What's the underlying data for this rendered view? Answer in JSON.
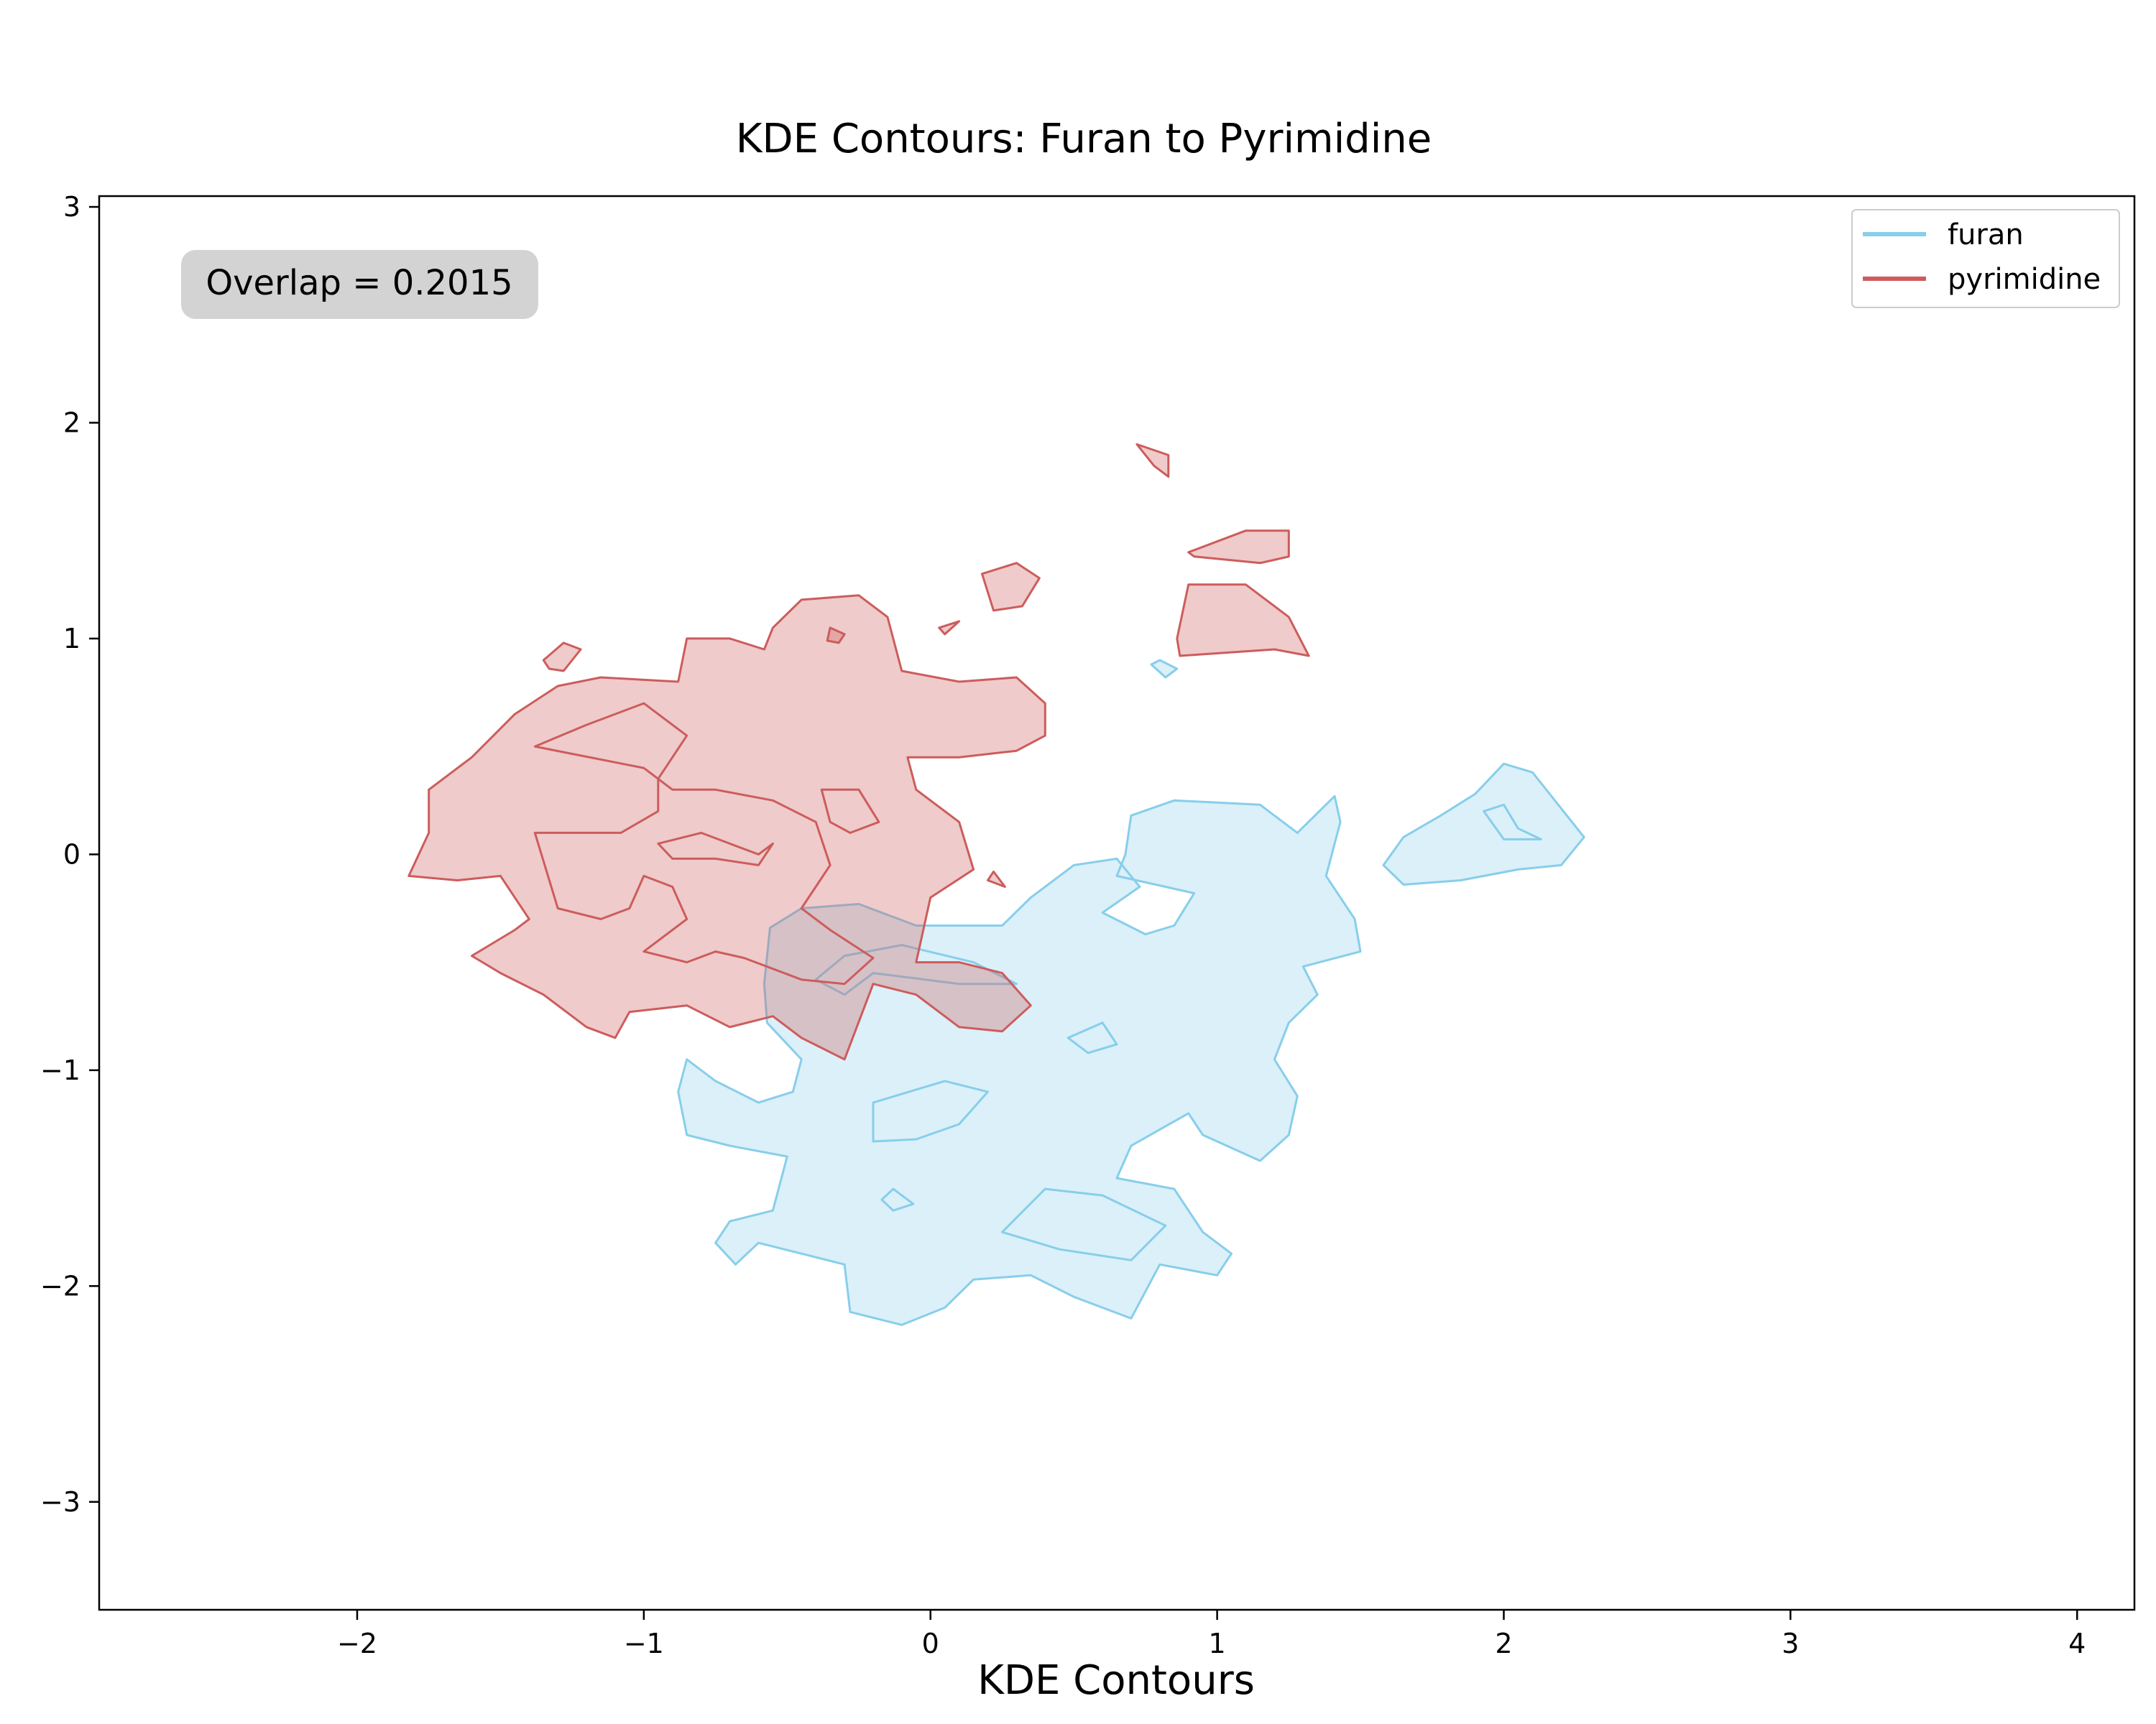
{
  "chart_data": {
    "type": "contour",
    "title": "KDE Contours: Furan to Pyrimidine",
    "xlabel": "KDE Contours",
    "ylabel": "",
    "xlim": [
      -2.9,
      4.2
    ],
    "ylim": [
      -3.5,
      3.05
    ],
    "xticks": [
      -2,
      -1,
      0,
      1,
      2,
      3,
      4
    ],
    "yticks": [
      -3,
      -2,
      -1,
      0,
      1,
      2,
      3
    ],
    "xtick_labels": [
      "−2",
      "−1",
      "0",
      "1",
      "2",
      "3",
      "4"
    ],
    "ytick_labels": [
      "−3",
      "−2",
      "−1",
      "0",
      "1",
      "2",
      "3"
    ],
    "grid": false,
    "legend_position": "top-right",
    "annotation": "Overlap = 0.2015",
    "series": [
      {
        "name": "furan",
        "color": "#87ceeb",
        "regions": [
          [
            [
              -0.56,
              -0.34
            ],
            [
              -0.45,
              -0.25
            ],
            [
              -0.25,
              -0.23
            ],
            [
              -0.05,
              -0.33
            ],
            [
              0.25,
              -0.33
            ],
            [
              0.35,
              -0.2
            ],
            [
              0.5,
              -0.05
            ],
            [
              0.65,
              -0.02
            ],
            [
              0.73,
              -0.15
            ],
            [
              0.6,
              -0.27
            ],
            [
              0.75,
              -0.37
            ],
            [
              0.85,
              -0.33
            ],
            [
              0.92,
              -0.18
            ],
            [
              0.65,
              -0.1
            ],
            [
              0.68,
              0.0
            ],
            [
              0.7,
              0.18
            ],
            [
              0.85,
              0.25
            ],
            [
              1.15,
              0.23
            ],
            [
              1.28,
              0.1
            ],
            [
              1.41,
              0.27
            ],
            [
              1.43,
              0.15
            ],
            [
              1.38,
              -0.1
            ],
            [
              1.48,
              -0.3
            ],
            [
              1.5,
              -0.45
            ],
            [
              1.3,
              -0.52
            ],
            [
              1.35,
              -0.65
            ],
            [
              1.25,
              -0.78
            ],
            [
              1.2,
              -0.95
            ],
            [
              1.28,
              -1.12
            ],
            [
              1.25,
              -1.3
            ],
            [
              1.15,
              -1.42
            ],
            [
              0.95,
              -1.3
            ],
            [
              0.9,
              -1.2
            ],
            [
              0.7,
              -1.35
            ],
            [
              0.65,
              -1.5
            ],
            [
              0.85,
              -1.55
            ],
            [
              0.95,
              -1.75
            ],
            [
              1.05,
              -1.85
            ],
            [
              1.0,
              -1.95
            ],
            [
              0.8,
              -1.9
            ],
            [
              0.7,
              -2.15
            ],
            [
              0.5,
              -2.05
            ],
            [
              0.35,
              -1.95
            ],
            [
              0.15,
              -1.97
            ],
            [
              0.05,
              -2.1
            ],
            [
              -0.1,
              -2.18
            ],
            [
              -0.28,
              -2.12
            ],
            [
              -0.3,
              -1.9
            ],
            [
              -0.45,
              -1.85
            ],
            [
              -0.6,
              -1.8
            ],
            [
              -0.68,
              -1.9
            ],
            [
              -0.75,
              -1.8
            ],
            [
              -0.7,
              -1.7
            ],
            [
              -0.55,
              -1.65
            ],
            [
              -0.5,
              -1.4
            ],
            [
              -0.7,
              -1.35
            ],
            [
              -0.85,
              -1.3
            ],
            [
              -0.88,
              -1.1
            ],
            [
              -0.85,
              -0.95
            ],
            [
              -0.75,
              -1.05
            ],
            [
              -0.6,
              -1.15
            ],
            [
              -0.48,
              -1.1
            ],
            [
              -0.45,
              -0.95
            ],
            [
              -0.57,
              -0.78
            ],
            [
              -0.58,
              -0.6
            ]
          ],
          [
            [
              1.58,
              -0.05
            ],
            [
              1.65,
              0.08
            ],
            [
              1.78,
              0.18
            ],
            [
              1.9,
              0.28
            ],
            [
              2.0,
              0.42
            ],
            [
              2.1,
              0.38
            ],
            [
              2.22,
              0.18
            ],
            [
              2.28,
              0.08
            ],
            [
              2.2,
              -0.05
            ],
            [
              2.05,
              -0.07
            ],
            [
              1.85,
              -0.12
            ],
            [
              1.65,
              -0.14
            ]
          ],
          [
            [
              0.77,
              0.88
            ],
            [
              0.82,
              0.82
            ],
            [
              0.86,
              0.86
            ],
            [
              0.8,
              0.9
            ]
          ]
        ],
        "inner_contours": [
          [
            [
              -0.4,
              -0.58
            ],
            [
              -0.3,
              -0.47
            ],
            [
              -0.1,
              -0.42
            ],
            [
              0.15,
              -0.5
            ],
            [
              0.3,
              -0.6
            ],
            [
              0.1,
              -0.6
            ],
            [
              -0.2,
              -0.55
            ],
            [
              -0.3,
              -0.65
            ]
          ],
          [
            [
              0.48,
              -0.85
            ],
            [
              0.6,
              -0.78
            ],
            [
              0.65,
              -0.88
            ],
            [
              0.55,
              -0.92
            ]
          ],
          [
            [
              -0.2,
              -1.15
            ],
            [
              0.05,
              -1.05
            ],
            [
              0.2,
              -1.1
            ],
            [
              0.1,
              -1.25
            ],
            [
              -0.05,
              -1.32
            ],
            [
              -0.2,
              -1.33
            ]
          ],
          [
            [
              -0.17,
              -1.6
            ],
            [
              -0.13,
              -1.55
            ],
            [
              -0.06,
              -1.62
            ],
            [
              -0.13,
              -1.65
            ]
          ],
          [
            [
              0.25,
              -1.75
            ],
            [
              0.4,
              -1.55
            ],
            [
              0.6,
              -1.58
            ],
            [
              0.82,
              -1.72
            ],
            [
              0.7,
              -1.88
            ],
            [
              0.45,
              -1.83
            ]
          ],
          [
            [
              1.93,
              0.2
            ],
            [
              2.0,
              0.23
            ],
            [
              2.05,
              0.12
            ],
            [
              2.13,
              0.07
            ],
            [
              2.0,
              0.07
            ]
          ]
        ]
      },
      {
        "name": "pyrimidine",
        "color": "#cd5c5c",
        "regions": [
          [
            [
              -1.82,
              -0.1
            ],
            [
              -1.75,
              0.1
            ],
            [
              -1.75,
              0.3
            ],
            [
              -1.6,
              0.45
            ],
            [
              -1.45,
              0.65
            ],
            [
              -1.3,
              0.78
            ],
            [
              -1.15,
              0.82
            ],
            [
              -0.88,
              0.8
            ],
            [
              -0.85,
              1.0
            ],
            [
              -0.7,
              1.0
            ],
            [
              -0.58,
              0.95
            ],
            [
              -0.55,
              1.05
            ],
            [
              -0.45,
              1.18
            ],
            [
              -0.25,
              1.2
            ],
            [
              -0.15,
              1.1
            ],
            [
              -0.1,
              0.85
            ],
            [
              0.1,
              0.8
            ],
            [
              0.3,
              0.82
            ],
            [
              0.4,
              0.7
            ],
            [
              0.4,
              0.55
            ],
            [
              0.3,
              0.48
            ],
            [
              0.1,
              0.45
            ],
            [
              -0.08,
              0.45
            ],
            [
              -0.05,
              0.3
            ],
            [
              0.1,
              0.15
            ],
            [
              0.15,
              -0.07
            ],
            [
              0.0,
              -0.2
            ],
            [
              -0.05,
              -0.5
            ],
            [
              0.1,
              -0.5
            ],
            [
              0.25,
              -0.55
            ],
            [
              0.35,
              -0.7
            ],
            [
              0.25,
              -0.82
            ],
            [
              0.1,
              -0.8
            ],
            [
              -0.05,
              -0.65
            ],
            [
              -0.2,
              -0.6
            ],
            [
              -0.3,
              -0.95
            ],
            [
              -0.45,
              -0.85
            ],
            [
              -0.55,
              -0.75
            ],
            [
              -0.7,
              -0.8
            ],
            [
              -0.85,
              -0.7
            ],
            [
              -1.05,
              -0.73
            ],
            [
              -1.1,
              -0.85
            ],
            [
              -1.2,
              -0.8
            ],
            [
              -1.35,
              -0.65
            ],
            [
              -1.5,
              -0.55
            ],
            [
              -1.6,
              -0.47
            ],
            [
              -1.45,
              -0.35
            ],
            [
              -1.4,
              -0.3
            ],
            [
              -1.5,
              -0.1
            ],
            [
              -1.65,
              -0.12
            ]
          ],
          [
            [
              0.18,
              1.3
            ],
            [
              0.3,
              1.35
            ],
            [
              0.38,
              1.28
            ],
            [
              0.32,
              1.15
            ],
            [
              0.22,
              1.13
            ]
          ],
          [
            [
              -1.35,
              0.9
            ],
            [
              -1.28,
              0.98
            ],
            [
              -1.22,
              0.95
            ],
            [
              -1.28,
              0.85
            ],
            [
              -1.33,
              0.86
            ]
          ],
          [
            [
              0.72,
              1.9
            ],
            [
              0.83,
              1.85
            ],
            [
              0.83,
              1.75
            ],
            [
              0.78,
              1.8
            ]
          ],
          [
            [
              0.9,
              1.4
            ],
            [
              1.1,
              1.5
            ],
            [
              1.25,
              1.5
            ],
            [
              1.25,
              1.38
            ],
            [
              1.15,
              1.35
            ],
            [
              0.92,
              1.38
            ]
          ],
          [
            [
              0.86,
              1.0
            ],
            [
              0.9,
              1.25
            ],
            [
              1.1,
              1.25
            ],
            [
              1.25,
              1.1
            ],
            [
              1.32,
              0.92
            ],
            [
              1.2,
              0.95
            ],
            [
              0.87,
              0.92
            ]
          ],
          [
            [
              -0.35,
              1.05
            ],
            [
              -0.3,
              1.02
            ],
            [
              -0.32,
              0.98
            ],
            [
              -0.36,
              0.99
            ]
          ],
          [
            [
              0.03,
              1.05
            ],
            [
              0.1,
              1.08
            ],
            [
              0.05,
              1.02
            ]
          ],
          [
            [
              0.2,
              -0.12
            ],
            [
              0.26,
              -0.15
            ],
            [
              0.22,
              -0.08
            ]
          ]
        ],
        "inner_contours": [
          [
            [
              -1.38,
              0.5
            ],
            [
              -1.2,
              0.6
            ],
            [
              -1.0,
              0.7
            ],
            [
              -0.9,
              0.6
            ],
            [
              -0.85,
              0.55
            ],
            [
              -0.95,
              0.35
            ],
            [
              -0.95,
              0.2
            ],
            [
              -1.08,
              0.1
            ],
            [
              -1.28,
              0.1
            ],
            [
              -1.38,
              0.1
            ],
            [
              -1.3,
              -0.25
            ],
            [
              -1.15,
              -0.3
            ],
            [
              -1.05,
              -0.25
            ],
            [
              -1.0,
              -0.1
            ],
            [
              -0.9,
              -0.15
            ],
            [
              -0.85,
              -0.3
            ],
            [
              -1.0,
              -0.45
            ],
            [
              -0.85,
              -0.5
            ],
            [
              -0.75,
              -0.45
            ],
            [
              -0.65,
              -0.48
            ],
            [
              -0.45,
              -0.58
            ],
            [
              -0.3,
              -0.6
            ],
            [
              -0.2,
              -0.48
            ],
            [
              -0.35,
              -0.35
            ],
            [
              -0.45,
              -0.25
            ],
            [
              -0.35,
              -0.05
            ],
            [
              -0.4,
              0.15
            ],
            [
              -0.55,
              0.25
            ],
            [
              -0.75,
              0.3
            ],
            [
              -0.9,
              0.3
            ],
            [
              -1.0,
              0.4
            ]
          ],
          [
            [
              -0.95,
              0.05
            ],
            [
              -0.8,
              0.1
            ],
            [
              -0.7,
              0.05
            ],
            [
              -0.6,
              0.0
            ],
            [
              -0.55,
              0.05
            ],
            [
              -0.6,
              -0.05
            ],
            [
              -0.75,
              -0.02
            ],
            [
              -0.9,
              -0.02
            ]
          ],
          [
            [
              -0.38,
              0.3
            ],
            [
              -0.25,
              0.3
            ],
            [
              -0.18,
              0.15
            ],
            [
              -0.28,
              0.1
            ],
            [
              -0.35,
              0.15
            ]
          ]
        ]
      }
    ]
  }
}
